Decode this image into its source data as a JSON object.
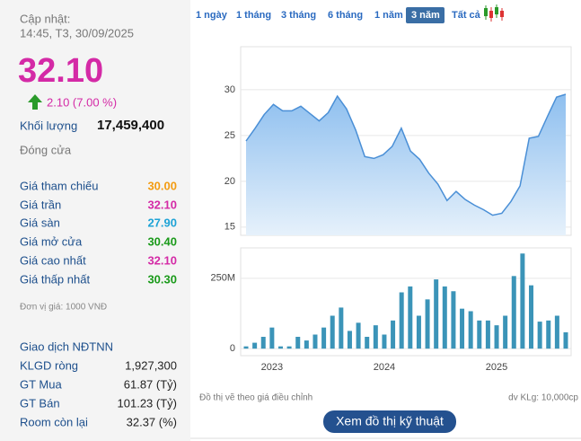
{
  "header": {
    "updated_label": "Cập nhật:",
    "updated_time": "14:45, T3, 30/09/2025"
  },
  "price": "32.10",
  "change": "2.10 (7.00 %)",
  "volume": {
    "label": "Khối lượng",
    "value": "17,459,400"
  },
  "close_label": "Đóng cửa",
  "price_table": [
    {
      "label": "Giá tham chiếu",
      "value": "30.00",
      "color": "#f39c12"
    },
    {
      "label": "Giá trần",
      "value": "32.10",
      "color": "#d42aa6"
    },
    {
      "label": "Giá sàn",
      "value": "27.90",
      "color": "#1ea3d6"
    },
    {
      "label": "Giá mở cửa",
      "value": "30.40",
      "color": "#1a9a1a"
    },
    {
      "label": "Giá cao nhất",
      "value": "32.10",
      "color": "#d42aa6"
    },
    {
      "label": "Giá thấp nhất",
      "value": "30.30",
      "color": "#1a9a1a"
    }
  ],
  "unit_note": "Đơn vị giá: 1000 VNĐ",
  "foreign": {
    "title": "Giao dịch NĐTNN",
    "rows": [
      {
        "label": "KLGD ròng",
        "value": "1,927,300"
      },
      {
        "label": "GT Mua",
        "value": "61.87 (Tỷ)"
      },
      {
        "label": "GT Bán",
        "value": "101.23 (Tỷ)"
      },
      {
        "label": "Room còn lại",
        "value": "32.37 (%)"
      }
    ]
  },
  "tabs": [
    "1 ngày",
    "1 tháng",
    "3 tháng",
    "6 tháng",
    "1 năm",
    "3 năm",
    "Tất cả"
  ],
  "selected_tab": 5,
  "chart_data": [
    {
      "type": "area",
      "color": "#4a8fd6",
      "values": [
        24.4,
        25.8,
        27.3,
        28.4,
        27.7,
        27.7,
        28.2,
        27.4,
        26.6,
        27.5,
        29.3,
        27.9,
        25.6,
        22.7,
        22.5,
        22.9,
        23.8,
        25.8,
        23.3,
        22.4,
        20.9,
        19.7,
        17.9,
        18.9,
        18.0,
        17.4,
        16.9,
        16.3,
        16.5,
        17.8,
        19.5,
        24.7,
        24.9,
        27.1,
        29.2,
        29.5
      ],
      "ylim": [
        14.1,
        34.7
      ],
      "yticks": [
        15,
        20,
        25,
        30
      ],
      "grid": true
    },
    {
      "type": "bar",
      "color": "#3b94b8",
      "categories": [
        null,
        null,
        null,
        "2023",
        null,
        null,
        null,
        null,
        null,
        null,
        null,
        null,
        null,
        null,
        null,
        null,
        "2024",
        null,
        null,
        null,
        null,
        null,
        null,
        null,
        null,
        null,
        null,
        null,
        null,
        "2025",
        null,
        null,
        null,
        null,
        null,
        null,
        null,
        null
      ],
      "values": [
        8,
        21,
        42,
        75,
        8,
        8,
        42,
        29,
        50,
        75,
        117,
        146,
        63,
        92,
        42,
        83,
        50,
        100,
        200,
        221,
        117,
        175,
        246,
        221,
        204,
        142,
        133,
        100,
        100,
        83,
        117,
        258,
        338,
        225,
        96,
        100,
        117,
        58
      ],
      "ylim": [
        -25,
        358
      ],
      "yticks": [
        0,
        {
          "value": 250,
          "label": "250M"
        }
      ],
      "grid": true
    }
  ],
  "footer": {
    "note": "Đồ thị vẽ theo giá điều chỉnh",
    "volume_unit": "dv KLg: 10,000cp",
    "button": "Xem đồ thị kỹ thuật"
  }
}
